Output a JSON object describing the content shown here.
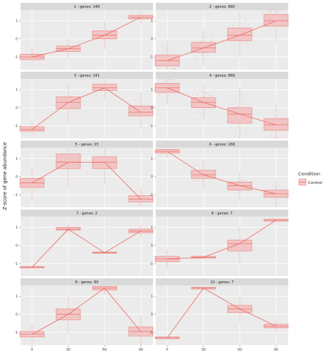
{
  "chart_data": {
    "type": "box",
    "ylabel": "Z-score of gene abundance",
    "x_ticks": [
      "0",
      "30",
      "60",
      "90"
    ],
    "y_ticks": [
      "1",
      "0",
      "-1"
    ],
    "ylim": [
      -1.7,
      1.6
    ],
    "legend": {
      "title": "Condition",
      "entries": [
        "Control"
      ]
    },
    "panels": [
      {
        "title": "1 - genes: 148",
        "n_points": 30,
        "boxes": [
          {
            "x": 0,
            "q1": -1.15,
            "median": -1.0,
            "q3": -0.85
          },
          {
            "x": 30,
            "q1": -0.7,
            "median": -0.55,
            "q3": -0.4
          },
          {
            "x": 60,
            "q1": 0.0,
            "median": 0.2,
            "q3": 0.45
          },
          {
            "x": 90,
            "q1": 1.1,
            "median": 1.2,
            "q3": 1.3
          }
        ]
      },
      {
        "title": "2 - genes: 890",
        "n_points": 160,
        "boxes": [
          {
            "x": 0,
            "q1": -1.5,
            "median": -1.2,
            "q3": -0.9
          },
          {
            "x": 30,
            "q1": -0.75,
            "median": -0.5,
            "q3": -0.2
          },
          {
            "x": 60,
            "q1": -0.1,
            "median": 0.2,
            "q3": 0.6
          },
          {
            "x": 90,
            "q1": 0.7,
            "median": 1.0,
            "q3": 1.35
          }
        ]
      },
      {
        "title": "3 - genes: 141",
        "n_points": 30,
        "boxes": [
          {
            "x": 0,
            "q1": -1.3,
            "median": -1.2,
            "q3": -1.05
          },
          {
            "x": 30,
            "q1": -0.05,
            "median": 0.3,
            "q3": 0.6
          },
          {
            "x": 60,
            "q1": 0.95,
            "median": 1.1,
            "q3": 1.3
          },
          {
            "x": 90,
            "q1": -0.45,
            "median": -0.25,
            "q3": 0.1
          }
        ]
      },
      {
        "title": "4 - genes: 868",
        "n_points": 160,
        "boxes": [
          {
            "x": 0,
            "q1": 0.85,
            "median": 1.1,
            "q3": 1.35
          },
          {
            "x": 30,
            "q1": 0.0,
            "median": 0.3,
            "q3": 0.55
          },
          {
            "x": 60,
            "q1": -0.85,
            "median": -0.35,
            "q3": 0.0
          },
          {
            "x": 90,
            "q1": -1.25,
            "median": -0.95,
            "q3": -0.6
          }
        ]
      },
      {
        "title": "5 - genes: 23",
        "n_points": 12,
        "boxes": [
          {
            "x": 0,
            "q1": -0.6,
            "median": -0.35,
            "q3": -0.1
          },
          {
            "x": 30,
            "q1": 0.45,
            "median": 0.8,
            "q3": 1.25
          },
          {
            "x": 60,
            "q1": 0.45,
            "median": 0.8,
            "q3": 1.1
          },
          {
            "x": 90,
            "q1": -1.4,
            "median": -1.25,
            "q3": -1.05
          }
        ]
      },
      {
        "title": "6 - genes: 168",
        "n_points": 30,
        "boxes": [
          {
            "x": 0,
            "q1": 1.3,
            "median": 1.4,
            "q3": 1.5
          },
          {
            "x": 30,
            "q1": -0.1,
            "median": 0.1,
            "q3": 0.35
          },
          {
            "x": 60,
            "q1": -0.75,
            "median": -0.5,
            "q3": -0.3
          },
          {
            "x": 90,
            "q1": -1.15,
            "median": -0.95,
            "q3": -0.75
          }
        ]
      },
      {
        "title": "7 - genes: 2",
        "n_points": 0,
        "boxes": [
          {
            "x": 0,
            "q1": -1.2,
            "median": -1.2,
            "q3": -1.2
          },
          {
            "x": 30,
            "q1": 0.85,
            "median": 0.9,
            "q3": 1.0
          },
          {
            "x": 60,
            "q1": -0.4,
            "median": -0.4,
            "q3": -0.35
          },
          {
            "x": 90,
            "q1": 0.7,
            "median": 0.8,
            "q3": 0.9
          }
        ]
      },
      {
        "title": "8 - genes: 7",
        "n_points": 6,
        "boxes": [
          {
            "x": 0,
            "q1": -0.9,
            "median": -0.75,
            "q3": -0.6
          },
          {
            "x": 30,
            "q1": -0.7,
            "median": -0.65,
            "q3": -0.6
          },
          {
            "x": 60,
            "q1": -0.3,
            "median": 0.1,
            "q3": 0.3
          },
          {
            "x": 90,
            "q1": 1.35,
            "median": 1.4,
            "q3": 1.45
          }
        ]
      },
      {
        "title": "9 - genes: 60",
        "n_points": 20,
        "boxes": [
          {
            "x": 0,
            "q1": -1.25,
            "median": -1.1,
            "q3": -0.95
          },
          {
            "x": 30,
            "q1": -0.3,
            "median": 0.0,
            "q3": 0.3
          },
          {
            "x": 60,
            "q1": 1.35,
            "median": 1.45,
            "q3": 1.55
          },
          {
            "x": 90,
            "q1": -1.2,
            "median": -0.95,
            "q3": -0.7
          }
        ]
      },
      {
        "title": "10 - genes: 7",
        "n_points": 0,
        "boxes": [
          {
            "x": 0,
            "q1": -1.35,
            "median": -1.3,
            "q3": -1.25
          },
          {
            "x": 30,
            "q1": 1.4,
            "median": 1.45,
            "q3": 1.5
          },
          {
            "x": 60,
            "q1": 0.1,
            "median": 0.3,
            "q3": 0.5
          },
          {
            "x": 90,
            "q1": -0.75,
            "median": -0.65,
            "q3": -0.55
          }
        ]
      }
    ],
    "colors": {
      "box_fill": "#f3b8b8",
      "box_line": "#e8807a",
      "trend": "#f0645c",
      "panel_bg": "#ebebeb",
      "strip_bg": "#d9d9d9"
    }
  }
}
